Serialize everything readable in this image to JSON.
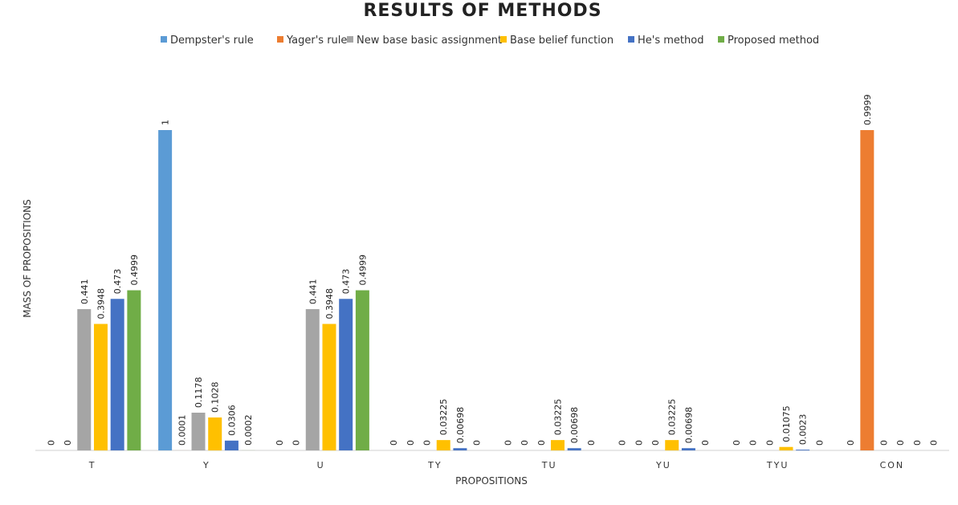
{
  "chart_data": {
    "type": "bar",
    "title": "RESULTS OF METHODS",
    "xlabel": "PROPOSITIONS",
    "ylabel": "MASS OF PROPOSITIONS",
    "ylim": [
      0,
      1
    ],
    "grid": false,
    "legend_position": "top",
    "categories": [
      "T",
      "Y",
      "U",
      "TY",
      "TU",
      "YU",
      "TYU",
      "CON"
    ],
    "series": [
      {
        "name": "Dempster's rule",
        "color": "#5B9BD5",
        "values": [
          0,
          1,
          0,
          0,
          0,
          0,
          0,
          0
        ],
        "labels": [
          "0",
          "1",
          "0",
          "0",
          "0",
          "0",
          "0",
          "0"
        ]
      },
      {
        "name": "Yager's rule",
        "color": "#ED7D31",
        "values": [
          0,
          0.0001,
          0,
          0,
          0,
          0,
          0,
          0.9999
        ],
        "labels": [
          "0",
          "0.0001",
          "0",
          "0",
          "0",
          "0",
          "0",
          "0.9999"
        ]
      },
      {
        "name": "New base basic assignment",
        "color": "#A5A5A5",
        "values": [
          0.441,
          0.1178,
          0.441,
          0,
          0,
          0,
          0,
          0
        ],
        "labels": [
          "0.441",
          "0.1178",
          "0.441",
          "0",
          "0",
          "0",
          "0",
          "0"
        ]
      },
      {
        "name": "Base belief function",
        "color": "#FFC000",
        "values": [
          0.3948,
          0.1028,
          0.3948,
          0.03225,
          0.03225,
          0.03225,
          0.01075,
          0
        ],
        "labels": [
          "0.3948",
          "0.1028",
          "0.3948",
          "0.03225",
          "0.03225",
          "0.03225",
          "0.01075",
          "0"
        ]
      },
      {
        "name": "He's method",
        "color": "#4472C4",
        "values": [
          0.473,
          0.0306,
          0.473,
          0.00698,
          0.00698,
          0.00698,
          0.0023,
          0
        ],
        "labels": [
          "0.473",
          "0.0306",
          "0.473",
          "0.00698",
          "0.00698",
          "0.00698",
          "0.0023",
          "0"
        ]
      },
      {
        "name": "Proposed method",
        "color": "#70AD47",
        "values": [
          0.4999,
          0.0002,
          0.4999,
          0,
          0,
          0,
          0,
          0
        ],
        "labels": [
          "0.4999",
          "0.0002",
          "0.4999",
          "0",
          "0",
          "0",
          "0",
          "0"
        ]
      }
    ]
  }
}
